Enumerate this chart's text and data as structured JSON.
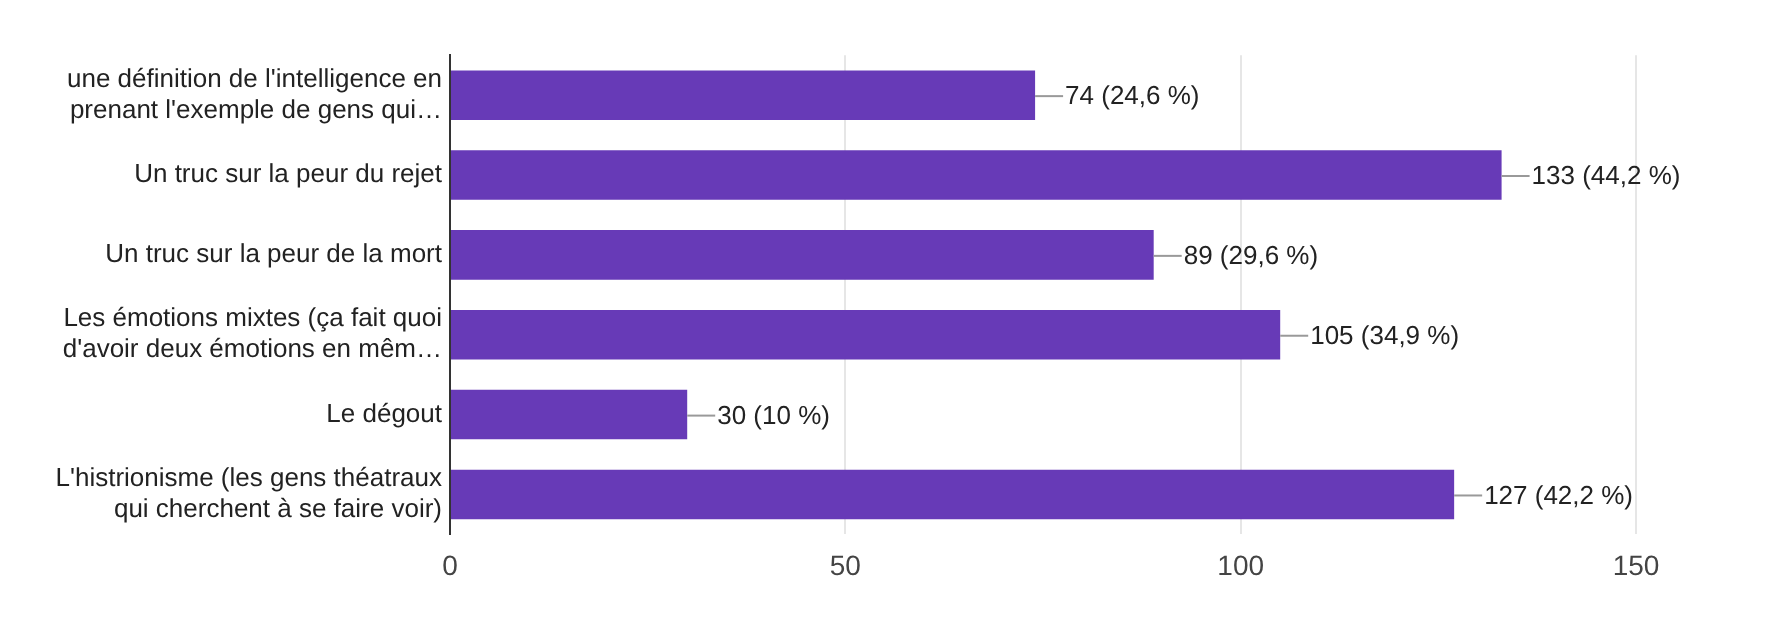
{
  "chart_data": {
    "type": "bar",
    "orientation": "horizontal",
    "categories": [
      "une définition de l'intelligence en prenant l'exemple de gens qui…",
      "Un truc sur la peur du rejet",
      "Un truc sur la peur de la mort",
      "Les émotions mixtes (ça fait quoi d'avoir deux émotions en mêm…",
      "Le dégout",
      "L'histrionisme (les gens théatraux qui cherchent à se faire voir)"
    ],
    "values": [
      74,
      133,
      89,
      105,
      30,
      127
    ],
    "value_labels": [
      "74 (24,6 %)",
      "133 (44,2 %)",
      "89 (29,6 %)",
      "105 (34,9 %)",
      "30 (10 %)",
      "127 (42,2 %)"
    ],
    "color": "#673ab7",
    "xlim": [
      0,
      150
    ],
    "xticks": [
      0,
      50,
      100,
      150
    ],
    "grid": "x",
    "legend": false
  }
}
